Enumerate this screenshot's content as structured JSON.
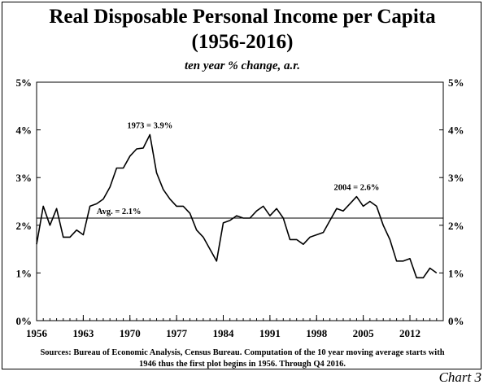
{
  "title_line1": "Real Disposable Personal Income per Capita",
  "title_line2": "(1956-2016)",
  "subtitle": "ten year % change, a.r.",
  "source_line1": "Sources: Bureau of Economic Analysis, Census Bureau. Computation of the 10 year moving average starts with",
  "source_line2": "1946 thus the first plot begins in 1956. Through Q4 2016.",
  "chart_label": "Chart 3",
  "chart_data": {
    "type": "line",
    "xlim": [
      1956,
      2017
    ],
    "ylim": [
      0,
      5
    ],
    "x_ticks": [
      "1956",
      "1963",
      "1970",
      "1977",
      "1984",
      "1991",
      "1998",
      "2005",
      "2012"
    ],
    "y_ticks": [
      "0%",
      "1%",
      "2%",
      "3%",
      "4%",
      "5%"
    ],
    "grid": false,
    "series": [
      {
        "x": [
          1956,
          1957,
          1958,
          1959,
          1960,
          1961,
          1962,
          1963,
          1964,
          1965,
          1966,
          1967,
          1968,
          1969,
          1970,
          1971,
          1972,
          1973,
          1974,
          1975,
          1976,
          1977,
          1978,
          1979,
          1980,
          1981,
          1982,
          1983,
          1984,
          1985,
          1986,
          1987,
          1988,
          1989,
          1990,
          1991,
          1992,
          1993,
          1994,
          1995,
          1996,
          1997,
          1998,
          1999,
          2000,
          2001,
          2002,
          2003,
          2004,
          2005,
          2006,
          2007,
          2008,
          2009,
          2010,
          2011,
          2012,
          2013,
          2014,
          2015,
          2016
        ],
        "values": [
          1.6,
          2.4,
          2.0,
          2.35,
          1.75,
          1.75,
          1.9,
          1.8,
          2.4,
          2.45,
          2.55,
          2.8,
          3.2,
          3.2,
          3.45,
          3.6,
          3.62,
          3.9,
          3.1,
          2.75,
          2.55,
          2.4,
          2.4,
          2.25,
          1.9,
          1.75,
          1.5,
          1.25,
          2.05,
          2.1,
          2.2,
          2.15,
          2.15,
          2.3,
          2.4,
          2.2,
          2.35,
          2.15,
          1.7,
          1.7,
          1.6,
          1.75,
          1.8,
          1.85,
          2.1,
          2.35,
          2.3,
          2.45,
          2.6,
          2.4,
          2.5,
          2.4,
          2.0,
          1.7,
          1.25,
          1.25,
          1.3,
          0.9,
          0.9,
          1.1,
          1.0
        ]
      }
    ],
    "average_line": {
      "value": 2.15,
      "label": "Avg. = 2.1%"
    },
    "annotations": [
      {
        "text": "1973 = 3.9%",
        "x": 1973,
        "y": 3.9
      },
      {
        "text": "2004 = 2.6%",
        "x": 2004,
        "y": 2.6
      }
    ]
  }
}
